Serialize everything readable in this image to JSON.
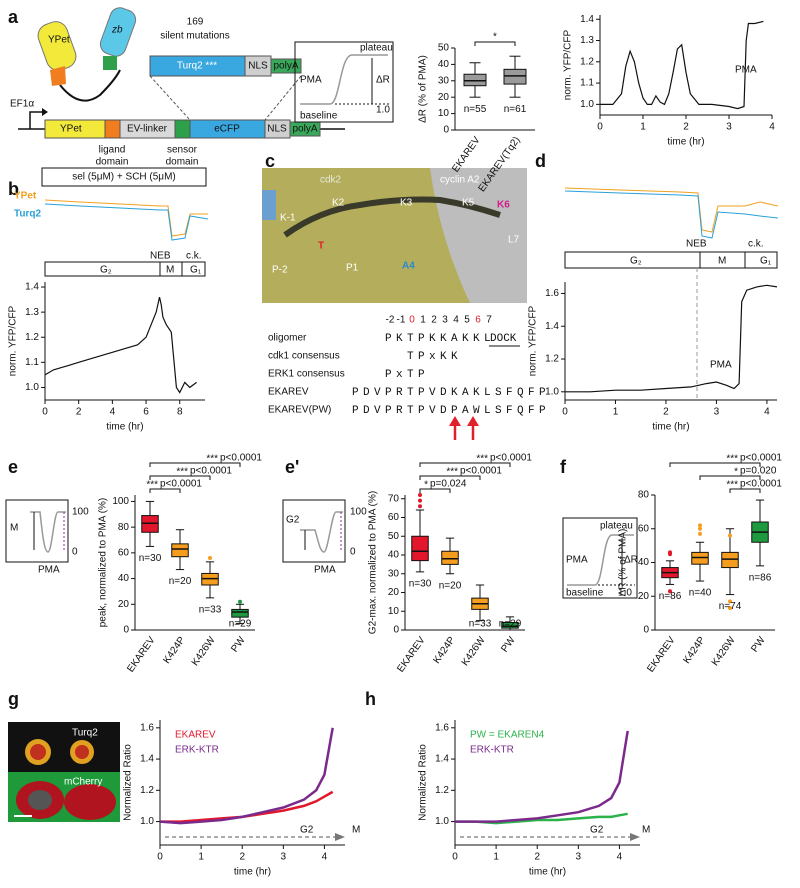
{
  "figure": {
    "panel_labels": [
      "a",
      "b",
      "c",
      "d",
      "e",
      "e'",
      "f",
      "g",
      "h"
    ],
    "a_construct": {
      "ypet": "YPet",
      "zb": "zb",
      "mutations_count": "169",
      "mutations": "silent mutations",
      "turq2": "Turq2 ***",
      "nls": "NLS",
      "polya": "polyA",
      "promoter": "EF1α",
      "ypet_gene": "YPet",
      "linker": "EV-linker",
      "ecfp": "eCFP",
      "nls_gene": "NLS",
      "polya_gene": "polyA",
      "ligand": [
        "ligand",
        "domain"
      ],
      "sensor": [
        "sensor",
        "domain"
      ]
    },
    "a_inset": {
      "plateau": "plateau",
      "pma": "PMA",
      "delta": "ΔR",
      "one": "1.0",
      "baseline": "baseline"
    },
    "b_header": {
      "treatment": "sel (5μM) + SCH (5μM)",
      "ypet": "YPet",
      "turq2": "Turq2"
    },
    "b_phases": {
      "neb": "NEB",
      "ck": "c.k.",
      "g2": "G₂",
      "m": "M",
      "g1": "G₁"
    },
    "c_structure": {
      "cdk2": "cdk2",
      "cyclin": "cyclin A2",
      "km1": "K-1",
      "k2": "K2",
      "k3": "K3",
      "k5": "K5",
      "k6": "K6",
      "t": "T",
      "pm2": "P-2",
      "p1": "P1",
      "a4": "A4",
      "l7": "L7"
    },
    "c_sequence": {
      "positions": [
        "-2",
        "-1",
        "0",
        "1",
        "2",
        "3",
        "4",
        "5",
        "6",
        "7"
      ],
      "rows": [
        {
          "name": "oligomer",
          "seq": "PKTPKKAKKL"
        },
        {
          "name": "cdk1 consensus",
          "seq": "TPxKK"
        },
        {
          "name": "ERK1 consensus",
          "seq": "PxTP"
        },
        {
          "name": "EKAREV",
          "seq": "PDVPRTPVDKAKLSFQFP"
        },
        {
          "name": "EKAREV(PW)",
          "seq": "PDVPRTPVDPAWLSFQFP"
        }
      ],
      "dock": "DOCK"
    },
    "d_phases": {
      "neb": "NEB",
      "ck": "c.k.",
      "g2": "G₂",
      "m": "M",
      "g1": "G₁"
    },
    "e_inset": {
      "phase": "M",
      "top": "100",
      "bottom": "0",
      "pma": "PMA"
    },
    "e2_inset": {
      "phase": "G2",
      "top": "100",
      "bottom": "0",
      "pma": "PMA"
    },
    "f_inset": {
      "plateau": "plateau",
      "pma": "PMA",
      "delta": "ΔR",
      "one": "1.0",
      "baseline": "baseline"
    },
    "g_image": {
      "top": "Turq2",
      "bottom": "mCherry"
    }
  },
  "chart_data": [
    {
      "type": "box",
      "ylabel": "ΔR (% of PMA)",
      "categories": [
        "EKAREV",
        "EKAREV(Tq2)"
      ],
      "colors": [
        "#9a9a9a",
        "#9a9a9a"
      ],
      "values": [
        [
          20,
          27,
          30,
          34,
          41
        ],
        [
          20,
          28,
          33,
          37,
          45
        ]
      ],
      "outliers": [
        [],
        []
      ],
      "n_labels": [
        "n=55",
        "n=61"
      ],
      "ylim": [
        0,
        50
      ],
      "yticks": [
        0,
        10,
        20,
        30,
        40,
        50
      ],
      "bracket_anchor": "first",
      "brackets": [
        {
          "stars": "*"
        }
      ]
    },
    {
      "type": "line",
      "ylabel": "norm. YFP/CFP",
      "xlabel": "time (hr)",
      "annotations": [
        "PMA"
      ],
      "x": [
        0,
        0.3,
        0.5,
        0.6,
        0.7,
        0.8,
        0.9,
        1.0,
        1.1,
        1.2,
        1.3,
        1.4,
        1.5,
        1.6,
        1.7,
        1.8,
        1.9,
        2.0,
        2.1,
        2.3,
        2.6,
        3.0,
        3.2,
        3.35,
        3.4,
        3.45,
        3.6,
        3.8
      ],
      "series": [
        {
          "color": "#111111",
          "values": [
            1.0,
            1.0,
            1.05,
            1.18,
            1.25,
            1.2,
            1.1,
            1.03,
            1.0,
            1.0,
            1.04,
            1.01,
            1.0,
            1.05,
            1.15,
            1.26,
            1.28,
            1.15,
            1.05,
            1.0,
            1.0,
            0.99,
            0.98,
            0.99,
            1.3,
            1.38,
            1.38,
            1.39
          ]
        }
      ],
      "xlim": [
        0,
        4
      ],
      "xticks": [
        0,
        1,
        2,
        3,
        4
      ],
      "ylim": [
        0.95,
        1.42
      ],
      "yticks": [
        {
          "value": 1,
          "label": "1.0"
        },
        1.1,
        1.2,
        1.3,
        1.4
      ]
    },
    {
      "type": "line",
      "ylabel": "norm. YFP/CFP",
      "xlabel": "time (hr)",
      "annotations": [],
      "x": [
        0,
        0.5,
        1,
        1.5,
        2,
        2.5,
        3,
        3.5,
        4,
        4.5,
        5,
        5.5,
        6,
        6.3,
        6.6,
        6.8,
        6.9,
        7.0,
        7.2,
        7.5,
        7.8,
        8.0,
        8.3,
        8.6,
        9.0
      ],
      "series": [
        {
          "color": "#111111",
          "values": [
            1.05,
            1.07,
            1.08,
            1.09,
            1.1,
            1.11,
            1.12,
            1.13,
            1.14,
            1.15,
            1.16,
            1.17,
            1.2,
            1.25,
            1.3,
            1.36,
            1.33,
            1.28,
            1.25,
            1.22,
            1.0,
            0.98,
            1.02,
            1.0,
            1.02
          ]
        }
      ],
      "xlim": [
        0,
        9.5
      ],
      "xticks": [
        0,
        2,
        4,
        6,
        8
      ],
      "ylim": [
        0.95,
        1.42
      ],
      "yticks": [
        {
          "value": 1,
          "label": "1.0"
        },
        1.1,
        1.2,
        1.3,
        1.4
      ]
    },
    {
      "type": "line",
      "ylabel": "norm. YFP/CFP",
      "xlabel": "time (hr)",
      "annotations": [
        "PMA"
      ],
      "x": [
        0,
        0.5,
        1,
        1.5,
        2,
        2.5,
        2.8,
        3.0,
        3.2,
        3.35,
        3.45,
        3.5,
        3.6,
        3.8,
        4.0,
        4.2
      ],
      "series": [
        {
          "color": "#111111",
          "values": [
            1.0,
            1.0,
            1.01,
            1.01,
            1.02,
            1.03,
            1.05,
            1.06,
            1.04,
            1.02,
            1.05,
            1.55,
            1.62,
            1.64,
            1.65,
            1.64
          ]
        }
      ],
      "xlim": [
        0,
        4.2
      ],
      "xticks": [
        0,
        1,
        2,
        3,
        4
      ],
      "ylim": [
        0.95,
        1.67
      ],
      "yticks": [
        {
          "value": 1,
          "label": "1.0"
        },
        1.2,
        1.4,
        1.6
      ]
    },
    {
      "type": "box",
      "ylabel": "peak, normalized to  PMA (%)",
      "categories": [
        "EKAREV",
        "K424P",
        "K426W",
        "PW"
      ],
      "colors": [
        "#e3172b",
        "#f59d1e",
        "#f59d1e",
        "#1d9a40"
      ],
      "values": [
        [
          65,
          76,
          83,
          89,
          100
        ],
        [
          47,
          57,
          63,
          67,
          78
        ],
        [
          25,
          35,
          40,
          44,
          53
        ],
        [
          5,
          10,
          14,
          16,
          20
        ]
      ],
      "outliers": [
        [],
        [],
        [
          56
        ],
        [
          22
        ]
      ],
      "n_labels": [
        "n=30",
        "n=20",
        "n=33",
        "n=29"
      ],
      "ylim": [
        0,
        105
      ],
      "yticks": [
        0,
        20,
        40,
        60,
        80,
        100
      ],
      "bracket_anchor": "first",
      "brackets": [
        {
          "stars": "***",
          "label": "p<0.0001"
        },
        {
          "stars": "***",
          "label": "p<0.0001"
        },
        {
          "stars": "***",
          "label": "p<0.0001"
        }
      ]
    },
    {
      "type": "box",
      "ylabel": "G2-max. normalized to  PMA (%)",
      "categories": [
        "EKAREV",
        "K424P",
        "K426W",
        "PW"
      ],
      "colors": [
        "#e3172b",
        "#f59d1e",
        "#f59d1e",
        "#1d9a40"
      ],
      "values": [
        [
          31,
          37,
          42,
          50,
          64
        ],
        [
          30,
          35,
          38,
          42,
          49
        ],
        [
          5,
          11,
          14,
          17,
          24
        ],
        [
          0,
          1,
          2,
          4,
          7
        ]
      ],
      "outliers": [
        [
          66,
          69,
          72
        ],
        [],
        [],
        []
      ],
      "n_labels": [
        "n=30",
        "n=20",
        "n=33",
        "n=29"
      ],
      "ylim": [
        0,
        72
      ],
      "yticks": [
        0,
        10,
        20,
        30,
        40,
        50,
        60,
        70
      ],
      "bracket_anchor": "first",
      "brackets": [
        {
          "stars": "***",
          "label": "p<0.0001"
        },
        {
          "stars": "***",
          "label": "p<0.0001"
        },
        {
          "stars": "*",
          "label": "p=0.024"
        }
      ]
    },
    {
      "type": "box",
      "ylabel": "ΔR (% of PMA)",
      "categories": [
        "EKAREV",
        "K424P",
        "K426W",
        "PW"
      ],
      "colors": [
        "#e3172b",
        "#f59d1e",
        "#f59d1e",
        "#1d9a40"
      ],
      "values": [
        [
          27,
          31,
          34,
          37,
          41
        ],
        [
          29,
          39,
          43,
          46,
          52
        ],
        [
          21,
          37,
          42,
          46,
          60
        ],
        [
          38,
          52,
          58,
          64,
          77
        ]
      ],
      "outliers": [
        [
          23,
          45,
          46
        ],
        [
          57,
          60,
          62
        ],
        [
          13,
          17,
          56
        ],
        []
      ],
      "n_labels": [
        "n=86",
        "n=40",
        "n=74",
        "n=86"
      ],
      "ylim": [
        0,
        80
      ],
      "yticks": [
        0,
        20,
        40,
        60,
        80
      ],
      "bracket_anchor": "last",
      "brackets": [
        {
          "stars": "***",
          "label": "p<0.0001"
        },
        {
          "stars": "*",
          "label": "p=0.020"
        },
        {
          "stars": "***",
          "label": "p<0.0001"
        }
      ]
    },
    {
      "type": "line",
      "ylabel": "Normalized Ratio",
      "xlabel": "time  (hr)",
      "annotations": [
        "G2",
        "M"
      ],
      "x": [
        0,
        0.5,
        1,
        1.5,
        2,
        2.5,
        3,
        3.5,
        3.8,
        4.0,
        4.2
      ],
      "series": [
        {
          "name": "EKAREV",
          "color": "#e3172b",
          "values": [
            1.0,
            1.0,
            1.01,
            1.02,
            1.03,
            1.05,
            1.07,
            1.1,
            1.13,
            1.16,
            1.19
          ]
        },
        {
          "name": "ERK-KTR",
          "color": "#7b2a8c",
          "values": [
            1.0,
            0.99,
            1.0,
            1.01,
            1.03,
            1.06,
            1.09,
            1.14,
            1.2,
            1.3,
            1.6
          ]
        }
      ],
      "xlim": [
        0,
        4.5
      ],
      "xticks": [
        0,
        1,
        2,
        3,
        4
      ],
      "ylim": [
        0.85,
        1.65
      ],
      "yticks": [
        {
          "value": 1,
          "label": "1.0"
        },
        1.2,
        1.4,
        1.6
      ]
    },
    {
      "type": "line",
      "ylabel": "Normalized Ratio",
      "xlabel": "time  (hr)",
      "annotations": [
        "G2",
        "M"
      ],
      "x": [
        0,
        0.5,
        1,
        1.5,
        2,
        2.5,
        3,
        3.5,
        3.8,
        4.0,
        4.2
      ],
      "series": [
        {
          "name": "PW = EKAREN4",
          "color": "#2bb34a",
          "values": [
            1.0,
            1.0,
            0.99,
            1.0,
            1.01,
            1.01,
            1.02,
            1.03,
            1.03,
            1.04,
            1.05
          ]
        },
        {
          "name": "ERK-KTR",
          "color": "#7b2a8c",
          "values": [
            1.0,
            1.0,
            1.0,
            1.01,
            1.02,
            1.04,
            1.06,
            1.1,
            1.15,
            1.25,
            1.58
          ]
        }
      ],
      "xlim": [
        0,
        4.5
      ],
      "xticks": [
        0,
        1,
        2,
        3,
        4
      ],
      "ylim": [
        0.85,
        1.65
      ],
      "yticks": [
        {
          "value": 1,
          "label": "1.0"
        },
        1.2,
        1.4,
        1.6
      ]
    }
  ]
}
